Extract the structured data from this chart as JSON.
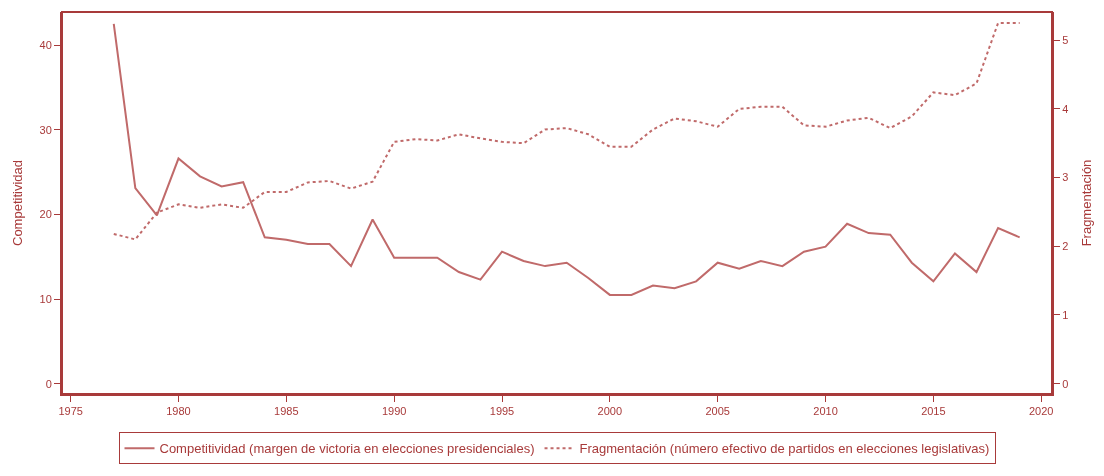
{
  "chart_data": {
    "type": "line",
    "ylabel": "Competitividad",
    "y2label": "Fragmentación",
    "x": [
      1977,
      1978,
      1979,
      1980,
      1981,
      1982,
      1983,
      1984,
      1985,
      1986,
      1987,
      1988,
      1989,
      1990,
      1991,
      1992,
      1993,
      1994,
      1995,
      1996,
      1997,
      1998,
      1999,
      2000,
      2001,
      2002,
      2003,
      2004,
      2005,
      2006,
      2007,
      2008,
      2009,
      2010,
      2011,
      2012,
      2013,
      2014,
      2015,
      2016,
      2017,
      2018,
      2019
    ],
    "series": [
      {
        "name": "Competitividad (margen de victoria en elecciones presidenciales)",
        "color": "#c06a6a",
        "line_style": "solid",
        "values": [
          42.5,
          23.1,
          19.9,
          26.6,
          24.5,
          23.3,
          23.8,
          17.3,
          17.0,
          16.5,
          16.5,
          13.9,
          19.4,
          14.9,
          14.9,
          14.9,
          13.2,
          12.3,
          15.6,
          14.5,
          13.9,
          14.3,
          12.5,
          10.5,
          10.5,
          11.6,
          11.3,
          12.1,
          14.3,
          13.6,
          14.5,
          13.9,
          15.6,
          16.2,
          18.9,
          17.8,
          17.6,
          14.3,
          12.1,
          15.4,
          13.2,
          18.4,
          17.3
        ]
      },
      {
        "name": "Fragmentación (número efectivo de partidos en elecciones legislativas)",
        "color": "#c06a6a",
        "line_style": "dotted",
        "axis": "y2",
        "values": [
          2.18,
          2.1,
          2.49,
          2.61,
          2.56,
          2.61,
          2.56,
          2.79,
          2.79,
          2.93,
          2.95,
          2.84,
          2.94,
          3.52,
          3.56,
          3.54,
          3.63,
          3.57,
          3.52,
          3.5,
          3.7,
          3.72,
          3.63,
          3.45,
          3.45,
          3.7,
          3.86,
          3.82,
          3.74,
          4.0,
          4.03,
          4.03,
          3.76,
          3.74,
          3.83,
          3.87,
          3.72,
          3.89,
          4.24,
          4.2,
          4.37,
          5.25,
          5.25
        ]
      }
    ],
    "xlim": [
      1974.6,
      2020.5
    ],
    "xticks": [
      1975,
      1980,
      1985,
      1990,
      1995,
      2000,
      2005,
      2010,
      2015,
      2020
    ],
    "ylim": [
      -1.2,
      43.9
    ],
    "yticks": [
      0,
      10,
      20,
      30,
      40
    ],
    "y2lim": [
      -0.15,
      5.41
    ],
    "y2ticks": [
      0,
      1,
      2,
      3,
      4,
      5
    ],
    "legend": "bottom",
    "marker": "none"
  }
}
